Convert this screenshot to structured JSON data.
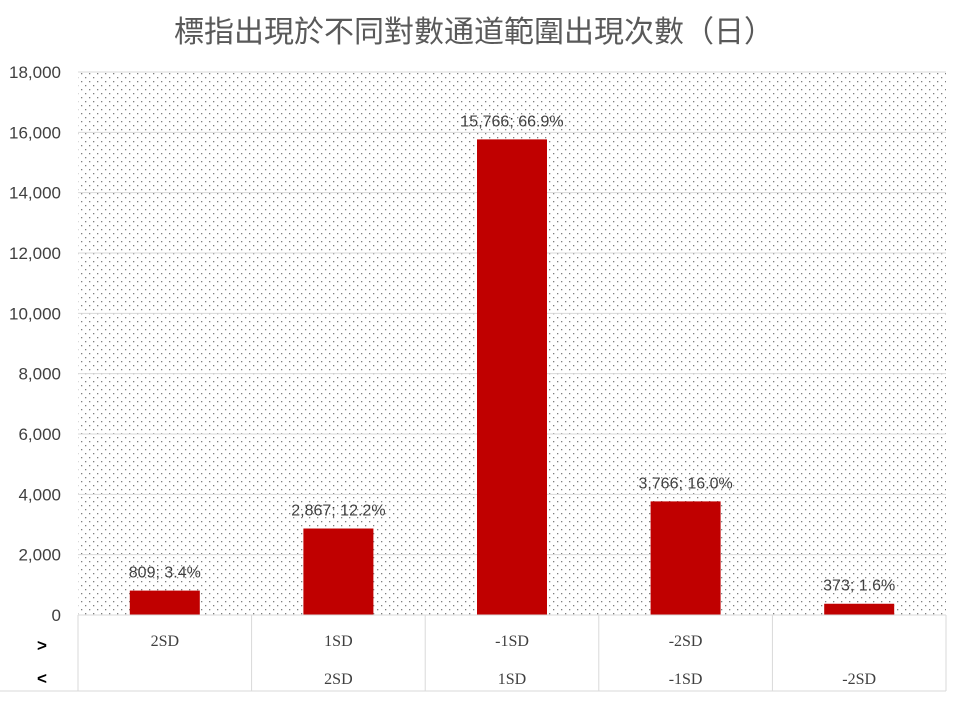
{
  "chart_data": {
    "type": "bar",
    "title": "標指出現於不同對數通道範圍出現次數（日）",
    "row_headers": [
      ">",
      "<"
    ],
    "categories_upper": [
      "2SD",
      "1SD",
      "-1SD",
      "-2SD",
      ""
    ],
    "categories_lower": [
      "",
      "2SD",
      "1SD",
      "-1SD",
      "-2SD"
    ],
    "values": [
      809,
      2867,
      15766,
      3766,
      373
    ],
    "data_labels": [
      "809; 3.4%",
      "2,867; 12.2%",
      "15,766; 66.9%",
      "3,766; 16.0%",
      "373; 1.6%"
    ],
    "ylim": [
      0,
      18000
    ],
    "yticks": [
      0,
      2000,
      4000,
      6000,
      8000,
      10000,
      12000,
      14000,
      16000,
      18000
    ],
    "ytick_labels": [
      "0",
      "2,000",
      "4,000",
      "6,000",
      "8,000",
      "10,000",
      "12,000",
      "14,000",
      "16,000",
      "18,000"
    ],
    "bar_color": "#C00000",
    "plot_pattern": "dotted",
    "grid": true,
    "legend": "none"
  }
}
